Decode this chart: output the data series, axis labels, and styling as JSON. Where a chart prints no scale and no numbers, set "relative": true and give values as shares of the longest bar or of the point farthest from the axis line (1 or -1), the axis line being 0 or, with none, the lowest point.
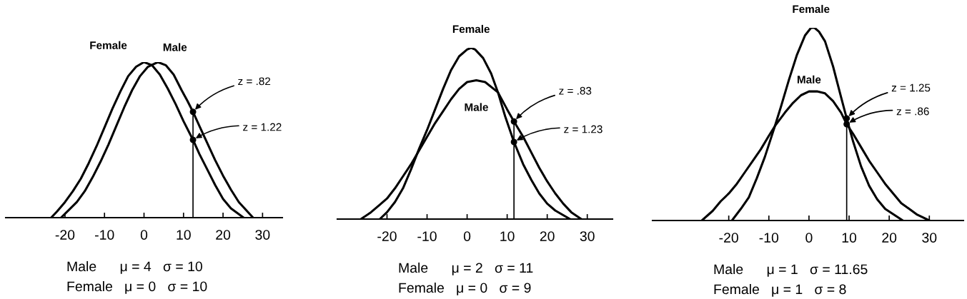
{
  "chart_data": [
    {
      "type": "line",
      "relative": true,
      "xlim": [
        -35,
        35
      ],
      "xticks": [
        -20,
        -10,
        0,
        10,
        20,
        30
      ],
      "grid": false,
      "legend": false,
      "marker": "none",
      "line_style": "solid",
      "series": [
        {
          "name": "Female",
          "color": "#000000",
          "x": [
            -23.5,
            -22,
            -20,
            -18,
            -16,
            -14,
            -12,
            -10,
            -8,
            -6,
            -4,
            -2,
            0,
            2,
            4,
            6,
            8,
            10,
            12.4,
            14,
            16,
            18,
            20,
            22,
            25.2
          ],
          "values": [
            0,
            0.04,
            0.1,
            0.17,
            0.25,
            0.35,
            0.46,
            0.58,
            0.7,
            0.81,
            0.91,
            0.97,
            1,
            0.98,
            0.92,
            0.83,
            0.73,
            0.62,
            0.5,
            0.41,
            0.31,
            0.21,
            0.12,
            0.06,
            0
          ]
        },
        {
          "name": "Male",
          "color": "#000000",
          "x": [
            -21,
            -19,
            -17,
            -15,
            -13,
            -11,
            -9,
            -7,
            -5,
            -3,
            -1,
            1,
            3.5,
            5.5,
            7.5,
            9.5,
            11,
            12.4,
            14,
            16,
            18,
            20,
            22,
            24,
            27.6
          ],
          "values": [
            0,
            0.05,
            0.1,
            0.17,
            0.26,
            0.36,
            0.47,
            0.59,
            0.71,
            0.82,
            0.91,
            0.97,
            1,
            0.98,
            0.92,
            0.82,
            0.75,
            0.68,
            0.59,
            0.48,
            0.37,
            0.27,
            0.18,
            0.1,
            0
          ]
        },
        {
          "type": "scatter",
          "color": "#000000",
          "x": [
            12.4,
            12.4
          ],
          "values": [
            0.68,
            0.5
          ]
        }
      ],
      "ref_lines": [
        {
          "axis": "x",
          "value": 12.4,
          "color": "#000000"
        }
      ],
      "annotations": [
        {
          "text": "z = .82",
          "x": 12.4,
          "y": 0.68
        },
        {
          "text": "z = 1.22",
          "x": 12.4,
          "y": 0.5
        },
        "Male      μ = 4   σ = 10",
        "Female   μ = 0   σ = 10"
      ]
    },
    {
      "type": "line",
      "relative": true,
      "xlim": [
        -32.4,
        36.3
      ],
      "xticks": [
        -20,
        -10,
        0,
        10,
        20,
        30
      ],
      "grid": false,
      "legend": false,
      "marker": "none",
      "line_style": "solid",
      "series": [
        {
          "name": "Female",
          "color": "#000000",
          "x": [
            -21.8,
            -20,
            -18,
            -16,
            -14,
            -12,
            -10,
            -8,
            -6,
            -4,
            -2,
            0,
            1,
            2,
            4,
            6,
            7.7,
            9.5,
            11.7,
            14,
            16,
            18,
            20,
            22,
            25.7
          ],
          "values": [
            0,
            0.04,
            0.1,
            0.18,
            0.29,
            0.41,
            0.52,
            0.64,
            0.76,
            0.87,
            0.95,
            0.99,
            1,
            0.99,
            0.94,
            0.85,
            0.74,
            0.6,
            0.45,
            0.32,
            0.23,
            0.15,
            0.09,
            0.05,
            0
          ]
        },
        {
          "name": "Male",
          "color": "#000000",
          "x": [
            -26.5,
            -24,
            -22,
            -20,
            -18,
            -16,
            -14,
            -12,
            -10,
            -8,
            -6,
            -4,
            -2,
            0,
            2.3,
            4.5,
            7.7,
            10,
            11.7,
            14,
            16,
            18,
            20,
            22,
            24,
            26,
            28.5
          ],
          "values": [
            0,
            0.04,
            0.08,
            0.12,
            0.18,
            0.25,
            0.32,
            0.4,
            0.48,
            0.56,
            0.63,
            0.7,
            0.76,
            0.8,
            0.81,
            0.8,
            0.74,
            0.64,
            0.57,
            0.48,
            0.39,
            0.3,
            0.22,
            0.15,
            0.09,
            0.04,
            0
          ]
        },
        {
          "type": "scatter",
          "color": "#000000",
          "x": [
            11.7,
            11.7
          ],
          "values": [
            0.57,
            0.45
          ]
        }
      ],
      "ref_lines": [
        {
          "axis": "x",
          "value": 11.7,
          "color": "#000000"
        }
      ],
      "annotations": [
        {
          "text": "z = .83",
          "x": 11.7,
          "y": 0.57
        },
        {
          "text": "z = 1.23",
          "x": 11.7,
          "y": 0.45
        },
        "Male      μ = 2   σ = 11",
        "Female   μ = 0   σ = 9"
      ]
    },
    {
      "type": "line",
      "relative": true,
      "xlim": [
        -39,
        38.5
      ],
      "xticks": [
        -20,
        -10,
        0,
        10,
        20,
        30
      ],
      "grid": false,
      "legend": false,
      "marker": "none",
      "line_style": "solid",
      "series": [
        {
          "name": "Female",
          "color": "#000000",
          "x": [
            -19.2,
            -17,
            -15,
            -13,
            -11,
            -8.5,
            -7,
            -5,
            -3,
            -1,
            0.5,
            1.4,
            2.5,
            4,
            6,
            8,
            9.4,
            11,
            13,
            15,
            17,
            19,
            23.4
          ],
          "values": [
            0,
            0.06,
            0.12,
            0.22,
            0.33,
            0.49,
            0.59,
            0.73,
            0.86,
            0.96,
            1,
            1,
            0.98,
            0.93,
            0.8,
            0.64,
            0.53,
            0.41,
            0.28,
            0.18,
            0.11,
            0.06,
            0
          ]
        },
        {
          "name": "Male",
          "color": "#000000",
          "x": [
            -26.7,
            -24,
            -22,
            -20,
            -18,
            -16,
            -14,
            -12,
            -10,
            -8.5,
            -6,
            -4,
            -2,
            0,
            2,
            4,
            6,
            8,
            9.4,
            11,
            13,
            15,
            17,
            19,
            21,
            23,
            25,
            27,
            30
          ],
          "values": [
            0,
            0.05,
            0.1,
            0.14,
            0.19,
            0.25,
            0.31,
            0.37,
            0.44,
            0.49,
            0.56,
            0.61,
            0.65,
            0.67,
            0.67,
            0.66,
            0.62,
            0.56,
            0.5,
            0.45,
            0.38,
            0.31,
            0.25,
            0.19,
            0.14,
            0.09,
            0.06,
            0.03,
            0
          ]
        },
        {
          "type": "scatter",
          "color": "#000000",
          "x": [
            9.4,
            9.4
          ],
          "values": [
            0.53,
            0.5
          ]
        }
      ],
      "ref_lines": [
        {
          "axis": "x",
          "value": 9.4,
          "color": "#000000"
        }
      ],
      "annotations": [
        {
          "text": "z = 1.25",
          "x": 9.4,
          "y": 0.53
        },
        {
          "text": "z = .86",
          "x": 9.4,
          "y": 0.5
        },
        "Male      μ = 1   σ = 11.65",
        "Female   μ = 1   σ = 8"
      ]
    }
  ]
}
